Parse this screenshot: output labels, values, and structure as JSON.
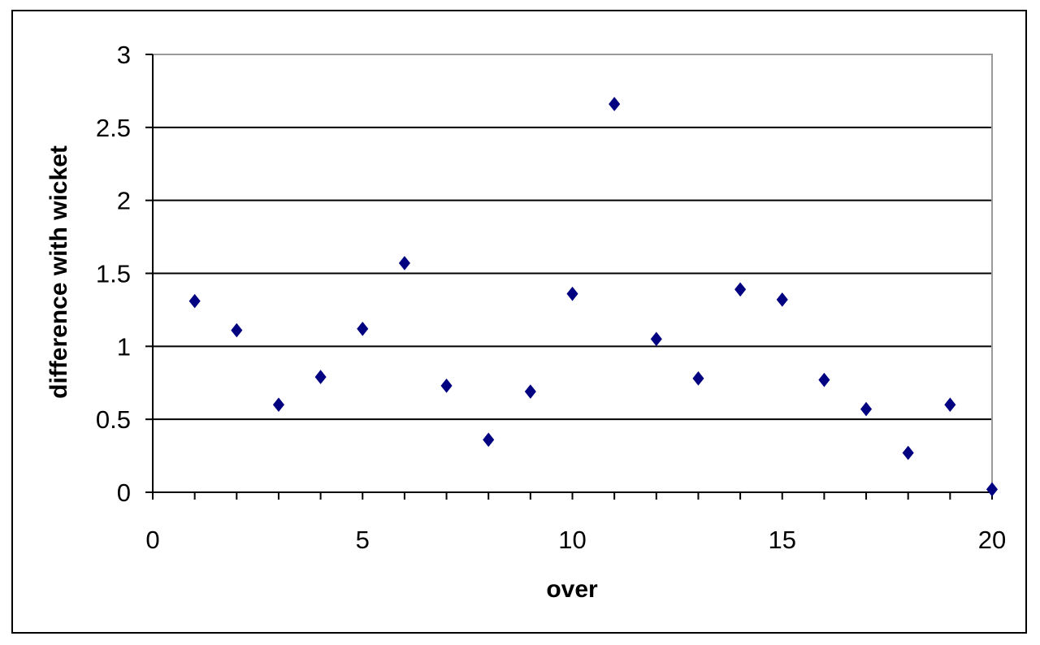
{
  "chart_data": {
    "type": "scatter",
    "title": "",
    "xlabel": "over",
    "ylabel": "difference with wicket",
    "xlim": [
      0,
      20
    ],
    "ylim": [
      0,
      3
    ],
    "x_ticks": [
      "0",
      "5",
      "10",
      "15",
      "20"
    ],
    "y_ticks": [
      "0",
      "0.5",
      "1",
      "1.5",
      "2",
      "2.5",
      "3"
    ],
    "grid": "horizontal major gridlines",
    "legend": "none",
    "marker": "diamond",
    "marker_color": "#000080",
    "series": [
      {
        "x": [
          1,
          2,
          3,
          4,
          5,
          6,
          7,
          8,
          9,
          10,
          11,
          12,
          13,
          14,
          15,
          16,
          17,
          18,
          19,
          20
        ],
        "y": [
          1.31,
          1.11,
          0.6,
          0.79,
          1.12,
          1.57,
          0.73,
          0.36,
          0.69,
          1.36,
          2.66,
          1.05,
          0.78,
          1.39,
          1.32,
          0.77,
          0.57,
          0.27,
          0.6,
          0.02
        ]
      }
    ]
  }
}
